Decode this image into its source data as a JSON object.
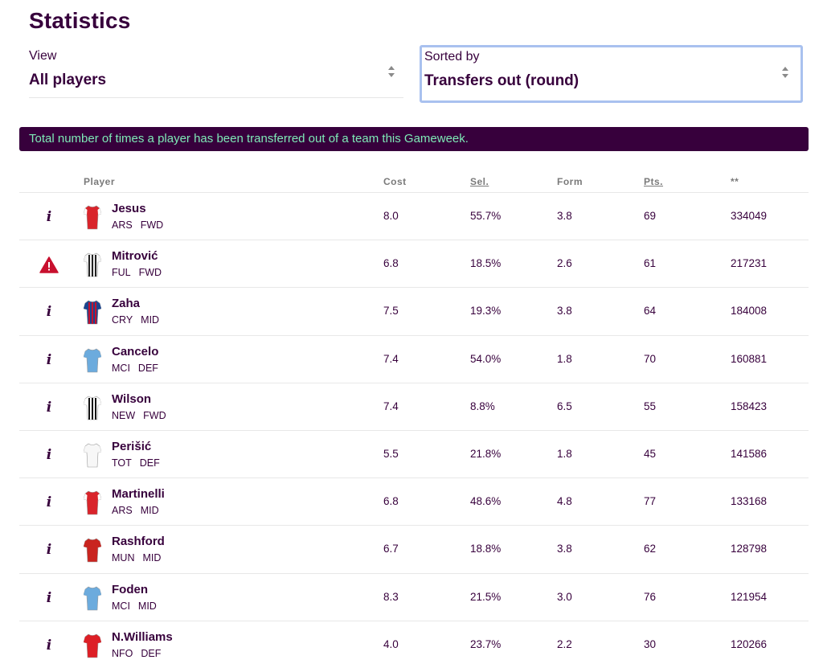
{
  "page": {
    "title": "Statistics"
  },
  "filters": {
    "view": {
      "label": "View",
      "value": "All players"
    },
    "sort": {
      "label": "Sorted by",
      "value": "Transfers out (round)"
    }
  },
  "banner": {
    "text": "Total number of times a player has been transferred out of a team this Gameweek."
  },
  "table": {
    "headers": {
      "player": "Player",
      "cost": "Cost",
      "sel": "Sel.",
      "form": "Form",
      "pts": "Pts.",
      "stat": "**"
    },
    "rows": [
      {
        "status": "info",
        "name": "Jesus",
        "team": "ARS",
        "pos": "FWD",
        "cost": "8.0",
        "sel": "55.7%",
        "form": "3.8",
        "pts": "69",
        "stat": "334049",
        "shirt": {
          "body": "#d9242b",
          "sleeve": "#ffffff",
          "stripe": ""
        }
      },
      {
        "status": "warning",
        "name": "Mitrović",
        "team": "FUL",
        "pos": "FWD",
        "cost": "6.8",
        "sel": "18.5%",
        "form": "2.6",
        "pts": "61",
        "stat": "217231",
        "shirt": {
          "body": "#f4f4f4",
          "sleeve": "#f4f4f4",
          "stripe": "#222222"
        }
      },
      {
        "status": "info",
        "name": "Zaha",
        "team": "CRY",
        "pos": "MID",
        "cost": "7.5",
        "sel": "19.3%",
        "form": "3.8",
        "pts": "64",
        "stat": "184008",
        "shirt": {
          "body": "#1b458f",
          "sleeve": "#1b458f",
          "stripe": "#c4122e"
        }
      },
      {
        "status": "info",
        "name": "Cancelo",
        "team": "MCI",
        "pos": "DEF",
        "cost": "7.4",
        "sel": "54.0%",
        "form": "1.8",
        "pts": "70",
        "stat": "160881",
        "shirt": {
          "body": "#6cabdd",
          "sleeve": "#6cabdd",
          "stripe": ""
        }
      },
      {
        "status": "info",
        "name": "Wilson",
        "team": "NEW",
        "pos": "FWD",
        "cost": "7.4",
        "sel": "8.8%",
        "form": "6.5",
        "pts": "55",
        "stat": "158423",
        "shirt": {
          "body": "#ffffff",
          "sleeve": "#ffffff",
          "stripe": "#111111"
        }
      },
      {
        "status": "info",
        "name": "Perišić",
        "team": "TOT",
        "pos": "DEF",
        "cost": "5.5",
        "sel": "21.8%",
        "form": "1.8",
        "pts": "45",
        "stat": "141586",
        "shirt": {
          "body": "#f7f7f7",
          "sleeve": "#f7f7f7",
          "stripe": ""
        }
      },
      {
        "status": "info",
        "name": "Martinelli",
        "team": "ARS",
        "pos": "MID",
        "cost": "6.8",
        "sel": "48.6%",
        "form": "4.8",
        "pts": "77",
        "stat": "133168",
        "shirt": {
          "body": "#d9242b",
          "sleeve": "#ffffff",
          "stripe": ""
        }
      },
      {
        "status": "info",
        "name": "Rashford",
        "team": "MUN",
        "pos": "MID",
        "cost": "6.7",
        "sel": "18.8%",
        "form": "3.8",
        "pts": "62",
        "stat": "128798",
        "shirt": {
          "body": "#c9241f",
          "sleeve": "#c9241f",
          "stripe": ""
        }
      },
      {
        "status": "info",
        "name": "Foden",
        "team": "MCI",
        "pos": "MID",
        "cost": "8.3",
        "sel": "21.5%",
        "form": "3.0",
        "pts": "76",
        "stat": "121954",
        "shirt": {
          "body": "#6cabdd",
          "sleeve": "#6cabdd",
          "stripe": ""
        }
      },
      {
        "status": "info",
        "name": "N.Williams",
        "team": "NFO",
        "pos": "DEF",
        "cost": "4.0",
        "sel": "23.7%",
        "form": "2.2",
        "pts": "30",
        "stat": "120266",
        "shirt": {
          "body": "#dd1f26",
          "sleeve": "#dd1f26",
          "stripe": ""
        }
      }
    ]
  }
}
